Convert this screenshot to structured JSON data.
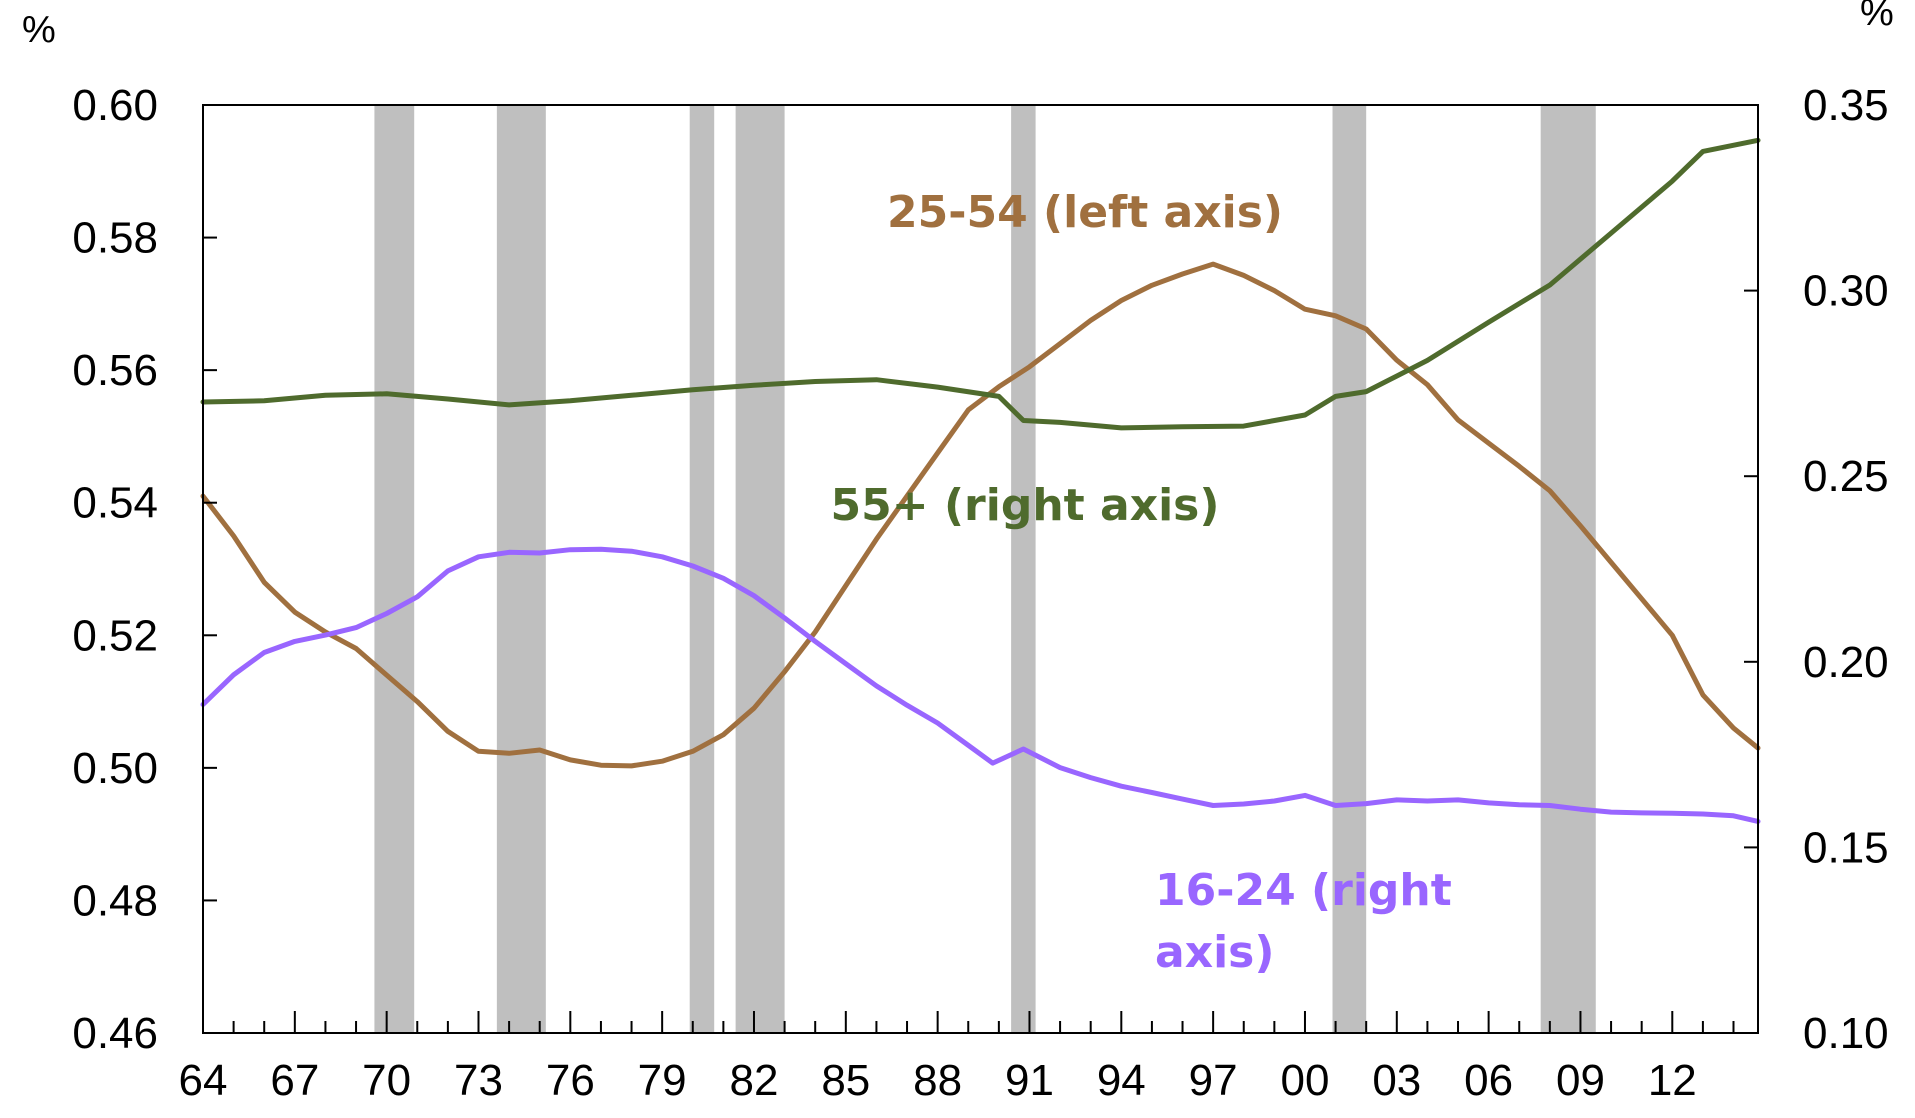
{
  "chart_data": {
    "type": "line",
    "title": "",
    "left_axis": {
      "unit": "%",
      "ylim": [
        0.46,
        0.6
      ],
      "ticks": [
        "0.46",
        "0.48",
        "0.50",
        "0.52",
        "0.54",
        "0.56",
        "0.58",
        "0.60"
      ]
    },
    "right_axis": {
      "unit": "%",
      "ylim": [
        0.1,
        0.35
      ],
      "ticks": [
        "0.10",
        "0.15",
        "0.20",
        "0.25",
        "0.30",
        "0.35"
      ]
    },
    "x_axis": {
      "xlim": [
        1964,
        2014.8
      ],
      "ticks": [
        {
          "x": 1964,
          "label": "64"
        },
        {
          "x": 1967,
          "label": "67"
        },
        {
          "x": 1970,
          "label": "70"
        },
        {
          "x": 1973,
          "label": "73"
        },
        {
          "x": 1976,
          "label": "76"
        },
        {
          "x": 1979,
          "label": "79"
        },
        {
          "x": 1982,
          "label": "82"
        },
        {
          "x": 1985,
          "label": "85"
        },
        {
          "x": 1988,
          "label": "88"
        },
        {
          "x": 1991,
          "label": "91"
        },
        {
          "x": 1994,
          "label": "94"
        },
        {
          "x": 1997,
          "label": "97"
        },
        {
          "x": 2000,
          "label": "00"
        },
        {
          "x": 2003,
          "label": "03"
        },
        {
          "x": 2006,
          "label": "06"
        },
        {
          "x": 2009,
          "label": "09"
        },
        {
          "x": 2012,
          "label": "12"
        }
      ]
    },
    "recessions": [
      [
        1969.6,
        1970.9
      ],
      [
        1973.6,
        1975.2
      ],
      [
        1979.9,
        1980.7
      ],
      [
        1981.4,
        1983.0
      ],
      [
        1990.4,
        1991.2
      ],
      [
        2000.9,
        2002.0
      ],
      [
        2007.7,
        2009.5
      ]
    ],
    "series": [
      {
        "name": "25-54 (left axis)",
        "axis": "left",
        "color": "#A0703F",
        "points": [
          [
            1964,
            0.541
          ],
          [
            1965,
            0.535
          ],
          [
            1966,
            0.528
          ],
          [
            1967,
            0.5235
          ],
          [
            1968,
            0.5205
          ],
          [
            1969,
            0.518
          ],
          [
            1970,
            0.514
          ],
          [
            1971,
            0.51
          ],
          [
            1972,
            0.5055
          ],
          [
            1973,
            0.5025
          ],
          [
            1974,
            0.5022
          ],
          [
            1975,
            0.5027
          ],
          [
            1976,
            0.5012
          ],
          [
            1977,
            0.5004
          ],
          [
            1978,
            0.5003
          ],
          [
            1979,
            0.501
          ],
          [
            1980,
            0.5025
          ],
          [
            1981,
            0.505
          ],
          [
            1982,
            0.509
          ],
          [
            1983,
            0.5145
          ],
          [
            1984,
            0.5205
          ],
          [
            1985,
            0.5275
          ],
          [
            1986,
            0.5345
          ],
          [
            1987,
            0.541
          ],
          [
            1988,
            0.5475
          ],
          [
            1989,
            0.554
          ],
          [
            1990,
            0.5575
          ],
          [
            1991,
            0.5605
          ],
          [
            1992,
            0.564
          ],
          [
            1993,
            0.5675
          ],
          [
            1994,
            0.5705
          ],
          [
            1995,
            0.5728
          ],
          [
            1996,
            0.5745
          ],
          [
            1997,
            0.576
          ],
          [
            1998,
            0.5743
          ],
          [
            1999,
            0.572
          ],
          [
            2000,
            0.5692
          ],
          [
            2001,
            0.5682
          ],
          [
            2002,
            0.5662
          ],
          [
            2003,
            0.5615
          ],
          [
            2004,
            0.5578
          ],
          [
            2005,
            0.5525
          ],
          [
            2006,
            0.549
          ],
          [
            2007,
            0.5455
          ],
          [
            2008,
            0.5418
          ],
          [
            2009,
            0.5365
          ],
          [
            2010,
            0.531
          ],
          [
            2011,
            0.5255
          ],
          [
            2012,
            0.52
          ],
          [
            2013,
            0.511
          ],
          [
            2014,
            0.506
          ],
          [
            2014.8,
            0.503
          ]
        ]
      },
      {
        "name": "55+ (right axis)",
        "axis": "right",
        "color": "#4F6B2D",
        "points": [
          [
            1964,
            0.27
          ],
          [
            1966,
            0.2703
          ],
          [
            1968,
            0.2718
          ],
          [
            1970,
            0.2722
          ],
          [
            1972,
            0.2708
          ],
          [
            1974,
            0.2692
          ],
          [
            1976,
            0.2703
          ],
          [
            1978,
            0.2718
          ],
          [
            1980,
            0.2733
          ],
          [
            1982,
            0.2745
          ],
          [
            1984,
            0.2755
          ],
          [
            1986,
            0.276
          ],
          [
            1988,
            0.274
          ],
          [
            1990,
            0.2715
          ],
          [
            1990.8,
            0.265
          ],
          [
            1992,
            0.2645
          ],
          [
            1994,
            0.263
          ],
          [
            1996,
            0.2633
          ],
          [
            1998,
            0.2635
          ],
          [
            2000,
            0.2665
          ],
          [
            2001,
            0.2715
          ],
          [
            2002,
            0.2728
          ],
          [
            2004,
            0.2812
          ],
          [
            2006,
            0.2915
          ],
          [
            2008,
            0.3015
          ],
          [
            2010,
            0.3155
          ],
          [
            2012,
            0.3295
          ],
          [
            2013,
            0.3375
          ],
          [
            2014.8,
            0.3405
          ]
        ]
      },
      {
        "name": "16-24 (right axis)",
        "axis": "right",
        "color": "#9966FF",
        "points": [
          [
            1964,
            0.1885
          ],
          [
            1965,
            0.1965
          ],
          [
            1966,
            0.2025
          ],
          [
            1967,
            0.2055
          ],
          [
            1968,
            0.2072
          ],
          [
            1969,
            0.2092
          ],
          [
            1970,
            0.213
          ],
          [
            1971,
            0.2175
          ],
          [
            1972,
            0.2245
          ],
          [
            1973,
            0.2283
          ],
          [
            1974,
            0.2295
          ],
          [
            1975,
            0.2293
          ],
          [
            1976,
            0.2302
          ],
          [
            1977,
            0.2303
          ],
          [
            1978,
            0.2298
          ],
          [
            1979,
            0.2283
          ],
          [
            1980,
            0.2258
          ],
          [
            1981,
            0.2225
          ],
          [
            1982,
            0.2178
          ],
          [
            1983,
            0.2118
          ],
          [
            1984,
            0.2055
          ],
          [
            1985,
            0.1995
          ],
          [
            1986,
            0.1935
          ],
          [
            1987,
            0.1883
          ],
          [
            1988,
            0.1835
          ],
          [
            1989,
            0.1775
          ],
          [
            1989.8,
            0.1727
          ],
          [
            1990.8,
            0.1765
          ],
          [
            1992,
            0.1715
          ],
          [
            1993,
            0.1688
          ],
          [
            1994,
            0.1665
          ],
          [
            1995,
            0.1648
          ],
          [
            1996,
            0.163
          ],
          [
            1997,
            0.1613
          ],
          [
            1998,
            0.1617
          ],
          [
            1999,
            0.1625
          ],
          [
            2000,
            0.164
          ],
          [
            2001,
            0.1613
          ],
          [
            2002,
            0.1618
          ],
          [
            2003,
            0.1628
          ],
          [
            2004,
            0.1625
          ],
          [
            2005,
            0.1628
          ],
          [
            2006,
            0.162
          ],
          [
            2007,
            0.1615
          ],
          [
            2008,
            0.1613
          ],
          [
            2009,
            0.1603
          ],
          [
            2010,
            0.1595
          ],
          [
            2011,
            0.1593
          ],
          [
            2012,
            0.1592
          ],
          [
            2013,
            0.159
          ],
          [
            2014,
            0.1585
          ],
          [
            2014.8,
            0.157
          ]
        ]
      }
    ],
    "annotations": [
      {
        "series": 0,
        "lines": [
          "25-54 (left axis)"
        ],
        "color": "#A0703F"
      },
      {
        "series": 1,
        "lines": [
          "55+ (right axis)"
        ],
        "color": "#4F6B2D"
      },
      {
        "series": 2,
        "lines": [
          "16-24 (right",
          "axis)"
        ],
        "color": "#9966FF"
      }
    ],
    "grid": false,
    "recession_color": "#BFBFBF",
    "axis_color": "#000000"
  }
}
